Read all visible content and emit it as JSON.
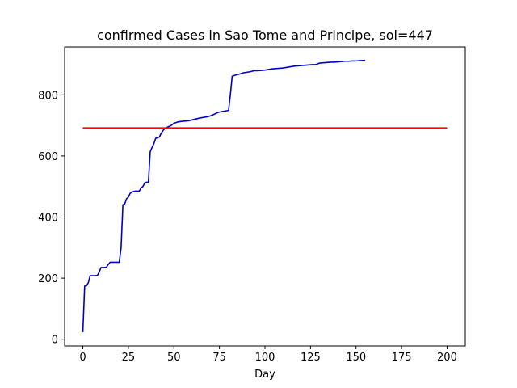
{
  "chart_data": {
    "type": "line",
    "title": "confirmed Cases in Sao Tome and Principe, sol=447",
    "xlabel": "Day",
    "ylabel": "",
    "xlim": [
      -10,
      210
    ],
    "ylim": [
      -22,
      957
    ],
    "xticks": [
      0,
      25,
      50,
      75,
      100,
      125,
      150,
      175,
      200
    ],
    "yticks": [
      0,
      200,
      400,
      600,
      800
    ],
    "grid": false,
    "series": [
      {
        "color": "#0000cd",
        "x": [
          0,
          1,
          2,
          3,
          4,
          5,
          6,
          7,
          8,
          9,
          10,
          11,
          12,
          13,
          14,
          15,
          16,
          17,
          18,
          19,
          20,
          21,
          22,
          23,
          24,
          25,
          26,
          27,
          28,
          29,
          30,
          31,
          32,
          33,
          34,
          35,
          36,
          37,
          38,
          39,
          40,
          41,
          42,
          43,
          44,
          45,
          46,
          47,
          48,
          49,
          50,
          52,
          54,
          56,
          58,
          60,
          62,
          64,
          66,
          68,
          70,
          72,
          74,
          76,
          78,
          80,
          81,
          82,
          84,
          86,
          88,
          90,
          92,
          94,
          96,
          98,
          100,
          102,
          104,
          106,
          108,
          110,
          112,
          114,
          116,
          118,
          120,
          122,
          124,
          126,
          128,
          130,
          132,
          134,
          136,
          138,
          140,
          142,
          144,
          146,
          148,
          150,
          152,
          155
        ],
        "y": [
          23,
          174,
          175,
          185,
          208,
          208,
          208,
          208,
          209,
          220,
          235,
          235,
          235,
          236,
          245,
          252,
          252,
          252,
          252,
          252,
          252,
          300,
          440,
          443,
          460,
          465,
          478,
          482,
          484,
          485,
          485,
          485,
          496,
          500,
          512,
          514,
          514,
          614,
          628,
          640,
          658,
          660,
          662,
          674,
          683,
          690,
          693,
          696,
          698,
          702,
          707,
          711,
          713,
          714,
          715,
          718,
          721,
          724,
          726,
          728,
          731,
          736,
          742,
          745,
          747,
          749,
          800,
          861,
          865,
          868,
          872,
          874,
          876,
          879,
          879,
          880,
          881,
          883,
          885,
          886,
          887,
          888,
          890,
          892,
          894,
          895,
          896,
          897,
          898,
          899,
          899,
          904,
          905,
          906,
          907,
          907,
          908,
          909,
          910,
          910,
          911,
          911,
          912,
          913
        ]
      },
      {
        "color": "#ff0000",
        "x": [
          0,
          200
        ],
        "y": [
          692,
          692
        ]
      }
    ]
  }
}
